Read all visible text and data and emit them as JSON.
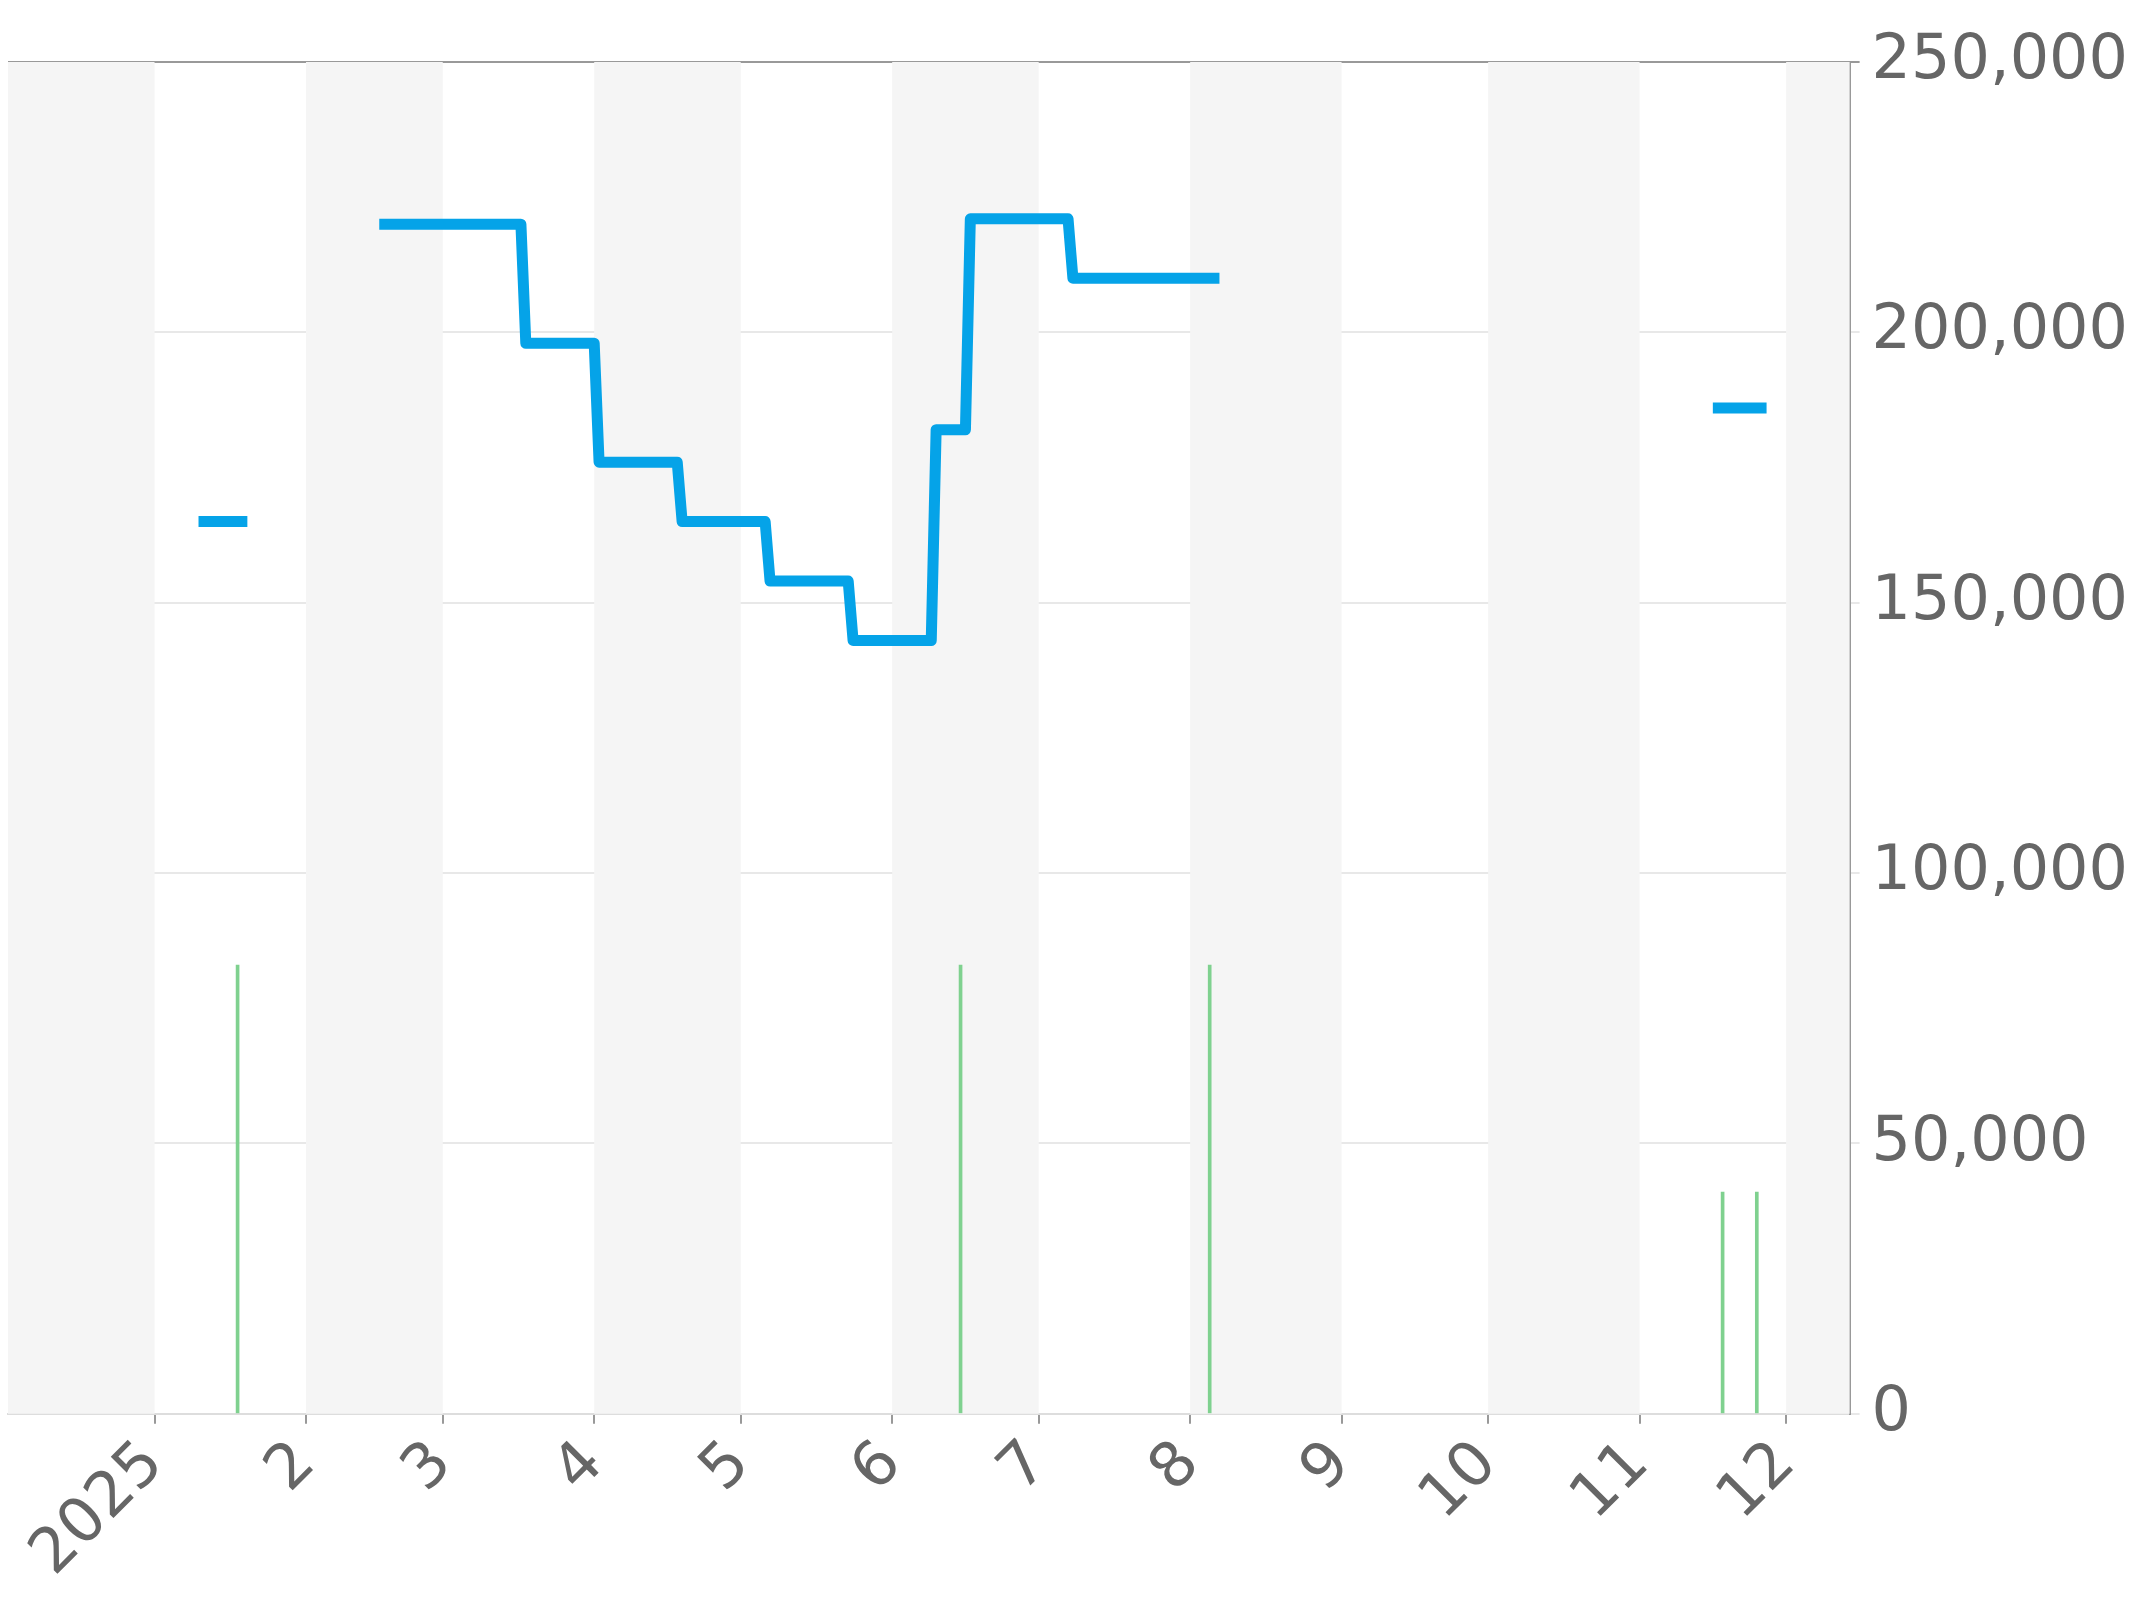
{
  "chart_data": {
    "type": "line",
    "xlim": [
      "2024-12-02",
      "2025-12-14"
    ],
    "ylim": [
      0,
      250000
    ],
    "xticks": [
      {
        "value": "2025-01-01",
        "label": "2025"
      },
      {
        "value": "2025-02-01",
        "label": "2"
      },
      {
        "value": "2025-03-01",
        "label": "3"
      },
      {
        "value": "2025-04-01",
        "label": "4"
      },
      {
        "value": "2025-05-01",
        "label": "5"
      },
      {
        "value": "2025-06-01",
        "label": "6"
      },
      {
        "value": "2025-07-01",
        "label": "7"
      },
      {
        "value": "2025-08-01",
        "label": "8"
      },
      {
        "value": "2025-09-01",
        "label": "9"
      },
      {
        "value": "2025-10-01",
        "label": "10"
      },
      {
        "value": "2025-11-01",
        "label": "11"
      },
      {
        "value": "2025-12-01",
        "label": "12"
      }
    ],
    "yticks": [
      {
        "value": 0,
        "label": "0"
      },
      {
        "value": 50000,
        "label": "50,000"
      },
      {
        "value": 100000,
        "label": "100,000"
      },
      {
        "value": 150000,
        "label": "150,000"
      },
      {
        "value": 200000,
        "label": "200,000"
      },
      {
        "value": 250000,
        "label": "250,000"
      }
    ],
    "grid": "y",
    "legend": false,
    "bands": [
      {
        "axis": "x",
        "from": "2024-12-02",
        "to": "2025-01-01",
        "color": "#f5f5f5"
      },
      {
        "axis": "x",
        "from": "2025-02-01",
        "to": "2025-03-01",
        "color": "#f5f5f5"
      },
      {
        "axis": "x",
        "from": "2025-04-01",
        "to": "2025-05-01",
        "color": "#f5f5f5"
      },
      {
        "axis": "x",
        "from": "2025-06-01",
        "to": "2025-07-01",
        "color": "#f5f5f5"
      },
      {
        "axis": "x",
        "from": "2025-08-01",
        "to": "2025-09-01",
        "color": "#f5f5f5"
      },
      {
        "axis": "x",
        "from": "2025-10-01",
        "to": "2025-11-01",
        "color": "#f5f5f5"
      },
      {
        "axis": "x",
        "from": "2025-12-01",
        "to": "2025-12-14",
        "color": "#f5f5f5"
      }
    ],
    "series": [
      {
        "type": "bar",
        "color": "#7fd18f",
        "x": [
          "2025-01-18",
          "2025-06-15",
          "2025-08-05",
          "2025-11-18",
          "2025-11-25"
        ],
        "values": [
          83000,
          83000,
          83000,
          41000,
          41000
        ]
      },
      {
        "color": "#05a3e8",
        "x": [
          "2025-01-10",
          "2025-01-20",
          "2025-02-01",
          "2025-02-16",
          "2025-03-17",
          "2025-03-18",
          "2025-04-01",
          "2025-04-02",
          "2025-04-18",
          "2025-04-19",
          "2025-05-06",
          "2025-05-07",
          "2025-05-23",
          "2025-05-24",
          "2025-06-09",
          "2025-06-10",
          "2025-06-16",
          "2025-06-17",
          "2025-07-07",
          "2025-07-08",
          "2025-08-07",
          "2025-09-01",
          "2025-11-16",
          "2025-11-27"
        ],
        "values": [
          165000,
          165000,
          null,
          220000,
          220000,
          198000,
          198000,
          176000,
          176000,
          165000,
          165000,
          154000,
          154000,
          143000,
          143000,
          182000,
          182000,
          221000,
          221000,
          210000,
          210000,
          null,
          186000,
          186000
        ]
      }
    ]
  }
}
